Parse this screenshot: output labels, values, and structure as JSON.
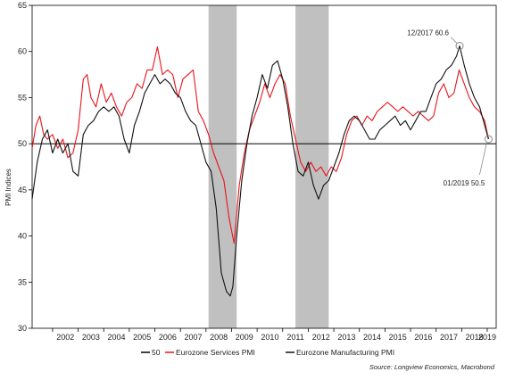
{
  "chart_data": {
    "type": "line",
    "ylabel": "PMI Indices",
    "xlabel": "",
    "title": "",
    "ylim": [
      30,
      65
    ],
    "yticks": [
      30,
      35,
      40,
      45,
      50,
      55,
      60,
      65
    ],
    "xlim": [
      2001.2,
      2019.35
    ],
    "xtick_labels": [
      "2002",
      "2003",
      "2004",
      "2005",
      "2006",
      "2007",
      "2008",
      "2009",
      "2010",
      "2011",
      "2012",
      "2013",
      "2014",
      "2015",
      "2016",
      "2017",
      "2018",
      "2019"
    ],
    "grid": false,
    "legend_position": "bottom-center",
    "recession_shading": [
      {
        "start": 2008.1,
        "end": 2009.2
      },
      {
        "start": 2011.5,
        "end": 2012.8
      }
    ],
    "reference_line": {
      "name": "50",
      "value": 50,
      "color": "#000000"
    },
    "series": [
      {
        "name": "Eurozone Services PMI",
        "color": "#e8141b",
        "x": [
          2001.2,
          2001.35,
          2001.5,
          2001.65,
          2001.8,
          2002.0,
          2002.2,
          2002.4,
          2002.6,
          2002.8,
          2003.0,
          2003.2,
          2003.35,
          2003.5,
          2003.7,
          2003.9,
          2004.1,
          2004.3,
          2004.5,
          2004.7,
          2004.9,
          2005.1,
          2005.3,
          2005.5,
          2005.7,
          2005.9,
          2006.1,
          2006.3,
          2006.5,
          2006.7,
          2006.9,
          2007.1,
          2007.3,
          2007.5,
          2007.7,
          2007.9,
          2008.1,
          2008.3,
          2008.5,
          2008.7,
          2008.9,
          2009.1,
          2009.3,
          2009.5,
          2009.7,
          2009.9,
          2010.1,
          2010.3,
          2010.5,
          2010.7,
          2010.9,
          2011.1,
          2011.3,
          2011.5,
          2011.7,
          2011.9,
          2012.1,
          2012.3,
          2012.5,
          2012.7,
          2012.9,
          2013.1,
          2013.3,
          2013.5,
          2013.7,
          2013.9,
          2014.1,
          2014.3,
          2014.5,
          2014.7,
          2014.9,
          2015.1,
          2015.3,
          2015.5,
          2015.7,
          2015.9,
          2016.1,
          2016.3,
          2016.5,
          2016.7,
          2016.9,
          2017.1,
          2017.3,
          2017.5,
          2017.7,
          2017.9,
          2018.1,
          2018.3,
          2018.5,
          2018.7,
          2018.9,
          2019.05
        ],
        "y": [
          49.5,
          52.0,
          53.0,
          51.0,
          50.5,
          51.0,
          49.5,
          50.5,
          48.5,
          49.0,
          51.5,
          57.0,
          57.5,
          55.0,
          54.0,
          56.5,
          54.5,
          55.5,
          54.0,
          53.0,
          54.5,
          55.0,
          56.5,
          56.0,
          58.0,
          58.0,
          60.5,
          57.5,
          58.0,
          57.5,
          55.0,
          57.0,
          57.5,
          58.0,
          53.5,
          52.5,
          51.0,
          49.0,
          47.5,
          46.0,
          42.0,
          39.2,
          45.5,
          49.0,
          51.5,
          53.0,
          54.5,
          56.5,
          55.0,
          56.5,
          57.5,
          56.5,
          53.0,
          50.5,
          48.0,
          47.0,
          48.0,
          47.0,
          47.5,
          46.5,
          47.5,
          47.0,
          48.5,
          51.0,
          52.5,
          53.0,
          52.0,
          53.0,
          52.5,
          53.5,
          54.0,
          54.5,
          54.0,
          53.5,
          54.0,
          53.5,
          53.0,
          53.5,
          53.0,
          52.5,
          53.0,
          55.5,
          56.5,
          55.0,
          55.5,
          58.0,
          56.5,
          55.0,
          54.0,
          53.5,
          52.5,
          50.5
        ]
      },
      {
        "name": "Eurozone Manufacturing PMI",
        "color": "#111111",
        "x": [
          2001.2,
          2001.4,
          2001.6,
          2001.8,
          2002.0,
          2002.2,
          2002.4,
          2002.6,
          2002.8,
          2003.0,
          2003.2,
          2003.4,
          2003.6,
          2003.8,
          2004.0,
          2004.2,
          2004.4,
          2004.6,
          2004.8,
          2005.0,
          2005.2,
          2005.4,
          2005.6,
          2005.8,
          2006.0,
          2006.2,
          2006.4,
          2006.6,
          2006.8,
          2007.0,
          2007.2,
          2007.4,
          2007.6,
          2007.8,
          2008.0,
          2008.2,
          2008.4,
          2008.6,
          2008.8,
          2008.95,
          2009.05,
          2009.2,
          2009.4,
          2009.6,
          2009.8,
          2010.0,
          2010.2,
          2010.4,
          2010.6,
          2010.8,
          2011.0,
          2011.2,
          2011.4,
          2011.6,
          2011.8,
          2012.0,
          2012.2,
          2012.4,
          2012.6,
          2012.8,
          2013.0,
          2013.2,
          2013.4,
          2013.6,
          2013.8,
          2014.0,
          2014.2,
          2014.4,
          2014.6,
          2014.8,
          2015.0,
          2015.2,
          2015.4,
          2015.6,
          2015.8,
          2016.0,
          2016.2,
          2016.4,
          2016.6,
          2016.8,
          2017.0,
          2017.2,
          2017.4,
          2017.6,
          2017.8,
          2017.92,
          2018.1,
          2018.3,
          2018.5,
          2018.7,
          2018.9,
          2019.05
        ],
        "y": [
          44.0,
          48.0,
          50.5,
          51.5,
          49.0,
          50.5,
          49.0,
          50.0,
          47.0,
          46.5,
          51.0,
          52.0,
          52.5,
          53.5,
          54.0,
          53.5,
          54.0,
          53.0,
          50.5,
          49.0,
          52.0,
          53.5,
          55.5,
          56.5,
          57.5,
          56.5,
          57.0,
          56.5,
          55.5,
          55.0,
          53.5,
          52.5,
          52.0,
          50.0,
          48.0,
          47.0,
          43.0,
          36.0,
          34.0,
          33.5,
          34.5,
          40.0,
          46.0,
          50.0,
          53.0,
          55.0,
          57.5,
          56.0,
          58.5,
          59.0,
          57.0,
          54.0,
          50.0,
          47.0,
          46.5,
          48.0,
          45.5,
          44.0,
          45.5,
          46.0,
          47.5,
          49.0,
          51.0,
          52.5,
          53.0,
          52.5,
          51.5,
          50.5,
          50.5,
          51.5,
          52.0,
          52.5,
          53.0,
          52.0,
          52.5,
          51.5,
          52.5,
          53.5,
          53.5,
          55.0,
          56.5,
          57.0,
          58.0,
          58.5,
          59.5,
          60.6,
          58.5,
          56.5,
          55.0,
          54.0,
          52.0,
          50.5
        ]
      }
    ],
    "annotations": [
      {
        "text": "12/2017 60.6",
        "x": 2017.92,
        "y": 60.6
      },
      {
        "text": "01/2019 50.5",
        "x": 2019.05,
        "y": 50.5
      }
    ],
    "legend": [
      {
        "label": "50",
        "color": "#000000"
      },
      {
        "label": "Eurozone Services PMI",
        "color": "#e8141b"
      },
      {
        "label": "Eurozone Manufacturing PMI",
        "color": "#111111"
      }
    ],
    "source": "Source: Longview Economics, Macrobond"
  }
}
